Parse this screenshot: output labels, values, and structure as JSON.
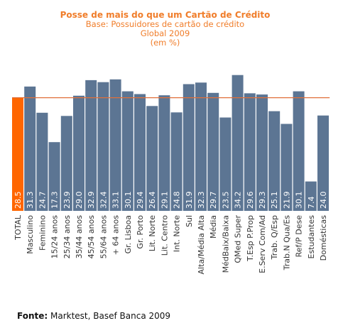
{
  "chart_data": {
    "type": "bar",
    "title": "Posse de mais do que um Cartão de Crédito",
    "subtitle": [
      "Base: Possuidores de cartão de crédito",
      "Global 2009",
      "(em %)"
    ],
    "categories": [
      "TOTAL",
      "Masculino",
      "Feminino",
      "15/24 anos",
      "25/34 anos",
      "35/44 anos",
      "45/54 anos",
      "55/64 anos",
      "+ 64 anos",
      "Gr. Lisboa",
      "Gr. Porto",
      "Lit. Norte",
      "Lit. Centro",
      "Int. Norte",
      "Sul",
      "Alta/Média Alta",
      "Média",
      "MédBaix/Baixa",
      "QMed Super",
      "T.Esp P.Prop",
      "E.Serv Com/Ad",
      "Trab. Q/Esp",
      "Trab.N Qua/Es",
      "Ref/P Dese",
      "Estudantes",
      "Domésticas"
    ],
    "values": [
      28.5,
      31.3,
      24.7,
      17.3,
      23.9,
      29.0,
      32.9,
      32.4,
      33.1,
      30.1,
      29.4,
      26.4,
      29.1,
      24.8,
      31.9,
      32.3,
      29.7,
      23.5,
      34.2,
      29.6,
      29.3,
      25.1,
      21.9,
      30.1,
      7.4,
      24.0
    ],
    "labels": [
      "28.5",
      "31.3",
      "24.7",
      "17.3",
      "23.9",
      "29.0",
      "32.9",
      "32.4",
      "33.1",
      "30.1",
      "29.4",
      "26.4",
      "29.1",
      "24.8",
      "31.9",
      "32.3",
      "29.7",
      "23.5",
      "34.2",
      "29.6",
      "29.3",
      "25.1",
      "21.9",
      "30.1",
      "7.4",
      "24.0"
    ],
    "reference_line": 28.5,
    "ylim": [
      0,
      37
    ],
    "grid": false,
    "colors": {
      "highlight": "#ff6600",
      "bars": "#5c7593",
      "reference": "#e0703a",
      "label": "#ffffff"
    }
  },
  "source": {
    "label": "Fonte:",
    "text": "Marktest, Basef Banca 2009"
  }
}
